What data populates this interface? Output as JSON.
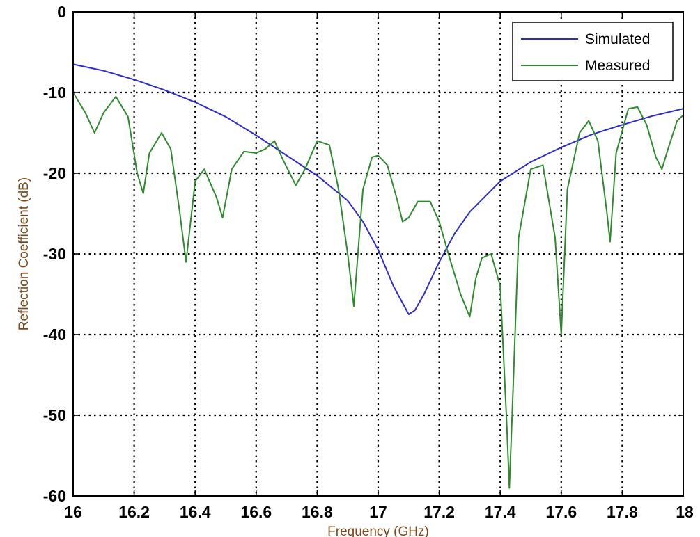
{
  "chart_data": {
    "type": "line",
    "title": "",
    "xlabel": "Frequency (GHz)",
    "ylabel": "Reflection Coefficient (dB)",
    "xlim": [
      16,
      18
    ],
    "ylim": [
      -60,
      0
    ],
    "xticks": [
      16,
      16.2,
      16.4,
      16.6,
      16.8,
      17,
      17.2,
      17.4,
      17.6,
      17.8,
      18
    ],
    "xtick_labels": [
      "16",
      "16.2",
      "16.4",
      "16.6",
      "16.8",
      "17",
      "17.2",
      "17.4",
      "17.6",
      "17.8",
      "18"
    ],
    "yticks": [
      0,
      -10,
      -20,
      -30,
      -40,
      -50,
      -60
    ],
    "ytick_labels": [
      "0",
      "-10",
      "-20",
      "-30",
      "-40",
      "-50",
      "-60"
    ],
    "grid": true,
    "legend_position": "top-right",
    "series": [
      {
        "name": "Simulated",
        "color": "#2b2bd6",
        "x": [
          16.0,
          16.1,
          16.2,
          16.3,
          16.4,
          16.5,
          16.6,
          16.7,
          16.8,
          16.9,
          16.95,
          17.0,
          17.05,
          17.1,
          17.12,
          17.15,
          17.2,
          17.25,
          17.3,
          17.4,
          17.5,
          17.6,
          17.7,
          17.8,
          17.9,
          18.0
        ],
        "y": [
          -6.5,
          -7.3,
          -8.4,
          -9.7,
          -11.2,
          -13.0,
          -15.3,
          -17.8,
          -20.3,
          -23.4,
          -26.0,
          -29.5,
          -34.0,
          -37.5,
          -37.0,
          -35.0,
          -31.0,
          -27.5,
          -24.8,
          -21.0,
          -18.6,
          -16.8,
          -15.2,
          -14.0,
          -12.9,
          -12.0
        ]
      },
      {
        "name": "Measured",
        "color": "#2e8b2e",
        "x": [
          16.0,
          16.04,
          16.07,
          16.1,
          16.14,
          16.18,
          16.21,
          16.23,
          16.25,
          16.29,
          16.32,
          16.35,
          16.37,
          16.4,
          16.43,
          16.47,
          16.49,
          16.52,
          16.56,
          16.6,
          16.63,
          16.66,
          16.69,
          16.73,
          16.76,
          16.8,
          16.84,
          16.87,
          16.9,
          16.92,
          16.95,
          16.98,
          17.0,
          17.03,
          17.06,
          17.08,
          17.1,
          17.13,
          17.17,
          17.2,
          17.23,
          17.27,
          17.3,
          17.32,
          17.34,
          17.37,
          17.4,
          17.42,
          17.43,
          17.44,
          17.46,
          17.5,
          17.54,
          17.58,
          17.6,
          17.62,
          17.66,
          17.69,
          17.72,
          17.75,
          17.76,
          17.78,
          17.82,
          17.85,
          17.88,
          17.91,
          17.93,
          17.95,
          17.98,
          18.0
        ],
        "y": [
          -10.0,
          -12.5,
          -15.0,
          -12.5,
          -10.5,
          -13.0,
          -20.0,
          -22.5,
          -17.5,
          -15.0,
          -17.0,
          -25.0,
          -31.0,
          -21.0,
          -19.5,
          -23.0,
          -25.5,
          -19.5,
          -17.3,
          -17.5,
          -17.0,
          -16.0,
          -18.5,
          -21.5,
          -19.5,
          -16.0,
          -16.5,
          -22.0,
          -30.0,
          -36.5,
          -22.0,
          -18.0,
          -17.8,
          -19.0,
          -23.0,
          -26.0,
          -25.5,
          -23.5,
          -23.5,
          -26.0,
          -30.0,
          -35.0,
          -37.8,
          -33.0,
          -30.5,
          -30.0,
          -34.0,
          -50.0,
          -59.0,
          -49.0,
          -28.0,
          -19.5,
          -19.0,
          -28.0,
          -40.0,
          -22.0,
          -15.0,
          -13.5,
          -16.0,
          -25.0,
          -28.5,
          -17.5,
          -12.0,
          -11.8,
          -14.0,
          -18.0,
          -19.5,
          -17.0,
          -13.5,
          -12.8
        ]
      }
    ]
  }
}
